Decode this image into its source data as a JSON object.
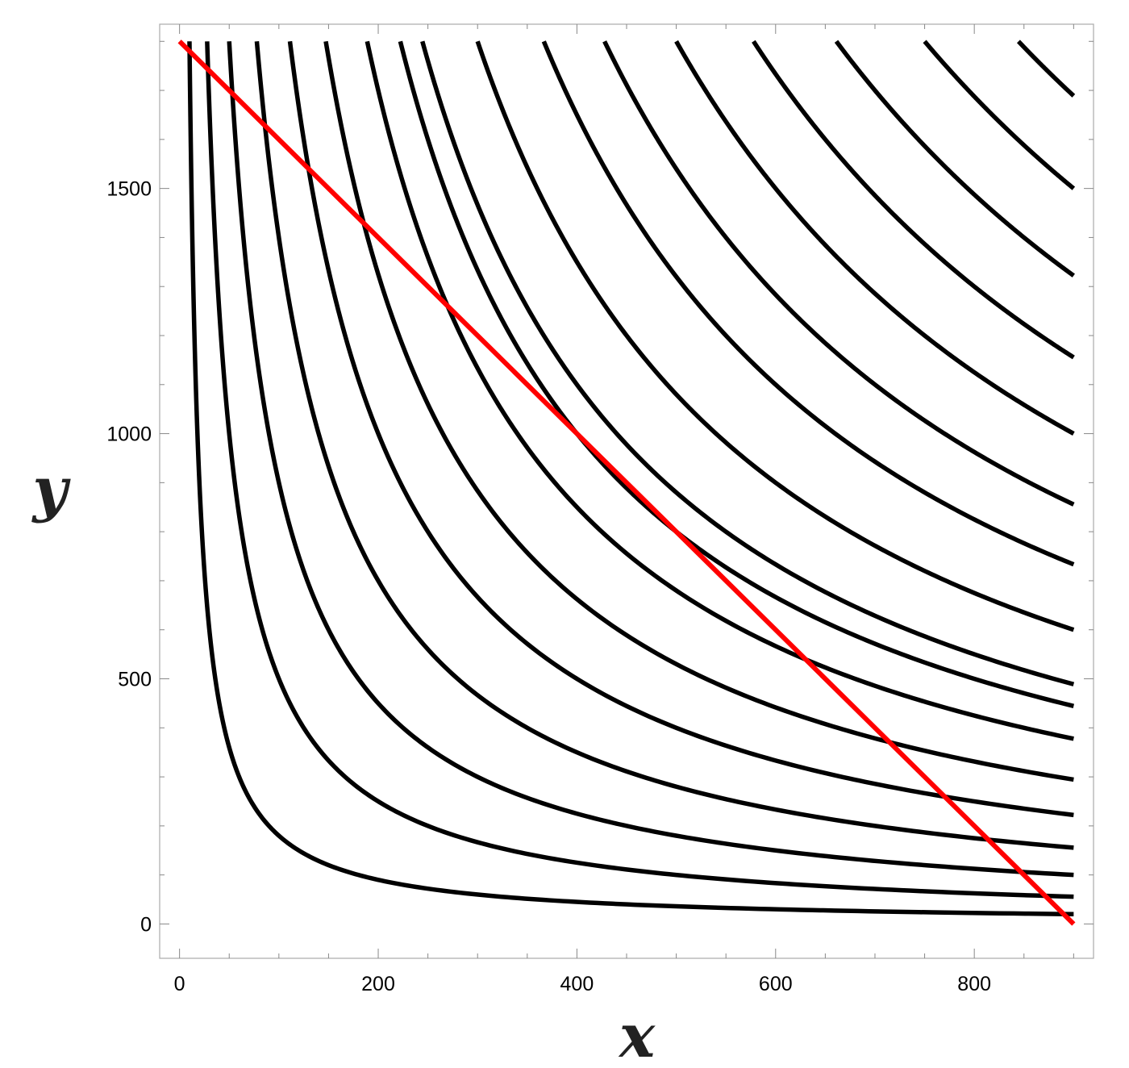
{
  "chart_data": {
    "type": "line",
    "title": "",
    "xlabel": "x",
    "ylabel": "y",
    "xlim": [
      -20,
      920
    ],
    "ylim": [
      -70,
      1835
    ],
    "x_ticks": [
      0,
      200,
      400,
      600,
      800
    ],
    "y_ticks": [
      0,
      500,
      1000,
      1500
    ],
    "x_minor_step": 50,
    "y_minor_step": 100,
    "grid": false,
    "legend": "none",
    "curve_color": "#000000",
    "line_color": "#ff0000",
    "hyperbola_family": {
      "description": "level curves x*y = k",
      "x_max": 900,
      "y_max": 1800,
      "k_values": [
        18000,
        50000,
        90000,
        140000,
        200000,
        265000,
        340000,
        400000,
        440000,
        540000,
        660000,
        770000,
        900000,
        1040000,
        1190000,
        1350000,
        1520000
      ]
    },
    "series": [
      {
        "type": "line",
        "x": [
          0,
          900
        ],
        "y": [
          1800,
          0
        ]
      }
    ]
  }
}
